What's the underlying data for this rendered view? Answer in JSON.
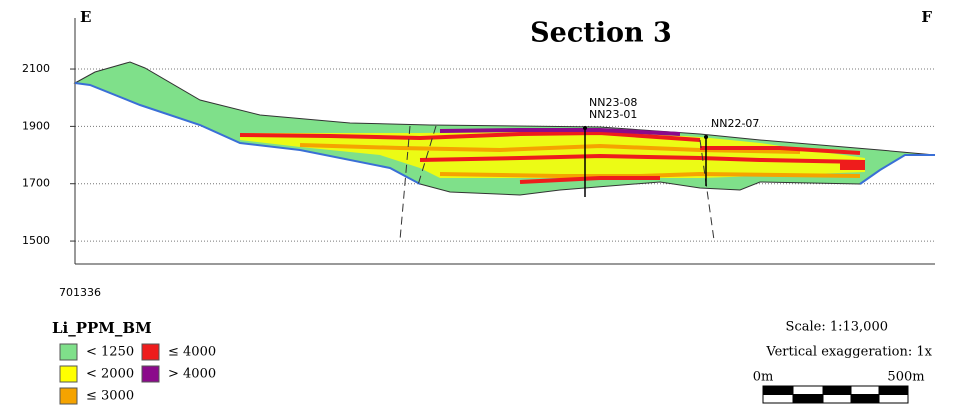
{
  "title": "Section 3",
  "corner_labels": {
    "left": "E",
    "right": "F"
  },
  "section": {
    "ylim": [
      1420,
      2278
    ],
    "yticks": [
      1500,
      1700,
      1900,
      2100
    ],
    "grid": true,
    "x_label": "701336"
  },
  "drillholes": [
    {
      "labels": [
        "NN23-08",
        "NN23-01"
      ]
    },
    {
      "labels": [
        "NN22-07"
      ]
    }
  ],
  "legend": {
    "title": "Li_PPM_BM",
    "items": [
      {
        "label": "< 1250",
        "color": "#7fe08a"
      },
      {
        "label": "≤ 4000",
        "color": "#ee1c1c"
      },
      {
        "label": "< 2000",
        "color": "#ffff00"
      },
      {
        "label": "> 4000",
        "color": "#8b0a8b"
      },
      {
        "label": "≤ 3000",
        "color": "#f5a300"
      }
    ]
  },
  "scale": {
    "text": "Scale: 1:13,000",
    "exaggeration": "Vertical exaggeration: 1x",
    "bar_labels": [
      "0m",
      "500m"
    ]
  }
}
